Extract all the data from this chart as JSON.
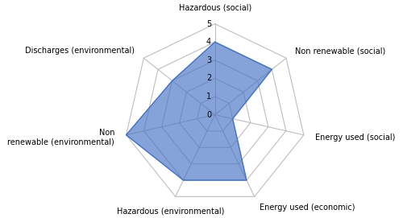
{
  "categories": [
    "Hazardous (social)",
    "Non renewable (social)",
    "Energy used (social)",
    "Energy used (economic)",
    "Hazardous (environmental)",
    "Non\nrenewable (environmental)",
    "Discharges (environmental)"
  ],
  "values": [
    4,
    4,
    1,
    4,
    4,
    5,
    3
  ],
  "max_value": 5,
  "num_rings": 5,
  "fill_color": "#4472C4",
  "fill_alpha": 0.65,
  "grid_color": "#BEBEBE",
  "line_color": "#BEBEBE",
  "tick_labels": [
    "0",
    "1",
    "2",
    "3",
    "4",
    "5"
  ],
  "tick_values": [
    0,
    1,
    2,
    3,
    4,
    5
  ],
  "label_fontsize": 7.0,
  "tick_fontsize": 7.0,
  "background_color": "#ffffff",
  "label_ha": [
    "center",
    "left",
    "left",
    "left",
    "center",
    "right",
    "right"
  ],
  "label_va": [
    "bottom",
    "center",
    "center",
    "center",
    "top",
    "center",
    "center"
  ]
}
